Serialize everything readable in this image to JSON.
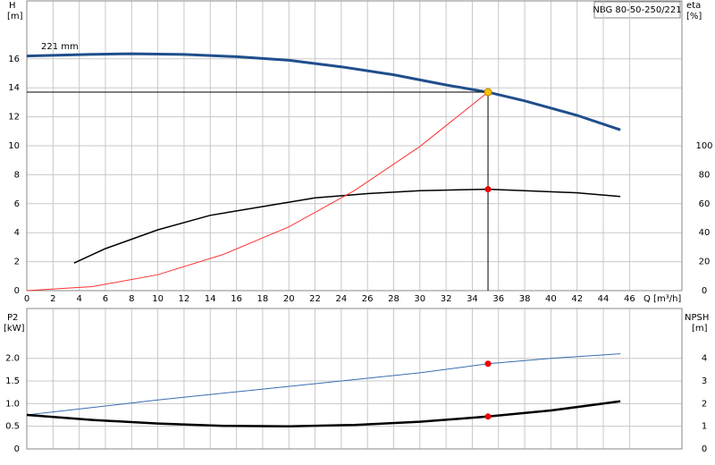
{
  "chart_data": [
    {
      "type": "line",
      "xlabel": "Q [m³/h]",
      "ylabel": "H",
      "ylabel_unit": "[m]",
      "y2label": "eta",
      "y2label_unit": "[%]",
      "title": "NBG 80-50-250/221",
      "annotation": "221 mm",
      "xlim": [
        0,
        50
      ],
      "xticks": [
        0,
        2,
        4,
        6,
        8,
        10,
        12,
        14,
        16,
        18,
        20,
        22,
        24,
        26,
        28,
        30,
        32,
        34,
        36,
        38,
        40,
        42,
        44,
        46
      ],
      "ylim": [
        0,
        20
      ],
      "yticks": [
        0,
        2,
        4,
        6,
        8,
        10,
        12,
        14,
        16
      ],
      "y2lim": [
        0,
        200
      ],
      "y2ticks": [
        0,
        20,
        40,
        60,
        80,
        100
      ],
      "grid": true,
      "series": [
        {
          "color": "#1f4e8c",
          "axis": "y",
          "x": [
            0,
            4.7,
            8,
            12,
            16,
            20,
            24,
            28,
            32,
            35.2,
            38,
            42,
            45.3
          ],
          "values": [
            16.2,
            16.3,
            16.35,
            16.3,
            16.15,
            15.9,
            15.45,
            14.9,
            14.2,
            13.7,
            13.1,
            12.1,
            11.1
          ]
        },
        {
          "color": "#000000",
          "axis": "y2",
          "x": [
            3.6,
            6,
            10,
            14,
            18,
            22,
            26,
            30,
            35.2,
            38,
            42,
            45.3
          ],
          "values": [
            19,
            29,
            42,
            52,
            58,
            64,
            67,
            69,
            70,
            69,
            67.5,
            65
          ]
        },
        {
          "color": "#ff3333",
          "axis": "y",
          "x": [
            0,
            5,
            10,
            15,
            20,
            25,
            30,
            35.2
          ],
          "values": [
            0,
            0.28,
            1.1,
            2.5,
            4.4,
            6.9,
            9.95,
            13.7
          ]
        }
      ],
      "duty_point": {
        "x": 35.2,
        "y": 13.7,
        "eta": 70
      }
    },
    {
      "type": "line",
      "ylabel": "P2",
      "ylabel_unit": "[kW]",
      "y2label": "NPSH",
      "y2label_unit": "[m]",
      "xlim": [
        0,
        50
      ],
      "xticks": [
        0,
        2,
        4,
        6,
        8,
        10,
        12,
        14,
        16,
        18,
        20,
        22,
        24,
        26,
        28,
        30,
        32,
        34,
        36,
        38,
        40,
        42,
        44,
        46
      ],
      "ylim": [
        0,
        3.1
      ],
      "yticks": [
        0,
        0.5,
        {
          "value": 1,
          "label": "1.0"
        },
        1.5,
        {
          "value": 2,
          "label": "2.0"
        }
      ],
      "y2lim": [
        0,
        6.2
      ],
      "y2ticks": [
        0,
        1,
        2,
        3,
        4
      ],
      "grid": true,
      "series": [
        {
          "color": "#3a6db0",
          "axis": "y",
          "x": [
            0,
            10,
            20,
            30,
            35.2,
            40,
            45.3
          ],
          "values": [
            0.75,
            1.08,
            1.38,
            1.68,
            1.88,
            2.0,
            2.1
          ]
        },
        {
          "color": "#000000",
          "axis": "y2",
          "x": [
            0,
            5,
            10,
            15,
            20,
            25,
            30,
            35.2,
            40,
            45.3
          ],
          "values": [
            1.5,
            1.28,
            1.12,
            1.02,
            1.0,
            1.06,
            1.2,
            1.43,
            1.7,
            2.1
          ]
        }
      ],
      "duty_point": {
        "x": 35.2,
        "y": 1.88,
        "y2": 1.43
      }
    }
  ]
}
